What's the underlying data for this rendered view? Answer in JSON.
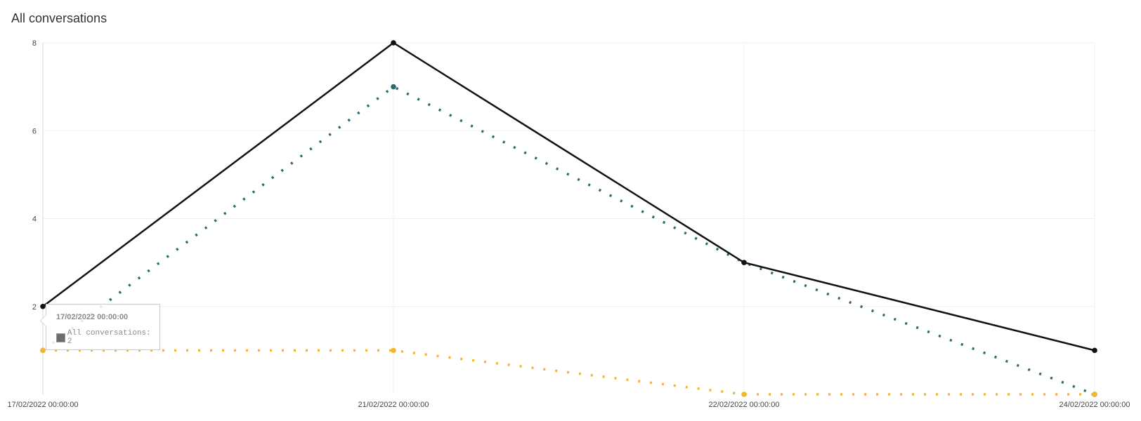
{
  "chart_data": {
    "type": "line",
    "title": "All conversations",
    "categories": [
      "17/02/2022 00:00:00",
      "21/02/2022 00:00:00",
      "22/02/2022 00:00:00",
      "24/02/2022 00:00:00"
    ],
    "yticks": [
      2,
      4,
      6,
      8
    ],
    "ylim": [
      0,
      8
    ],
    "grid": true,
    "series": [
      {
        "name": "All conversations",
        "values": [
          2,
          8,
          3,
          1
        ],
        "color": "#111111",
        "style": "solid"
      },
      {
        "values": [
          1,
          7,
          3,
          0
        ],
        "color": "#2a6b6b",
        "style": "dotted"
      },
      {
        "values": [
          1,
          1,
          0,
          0
        ],
        "color": "#f2b632",
        "style": "dotted"
      }
    ]
  },
  "tooltip": {
    "date": "17/02/2022 00:00:00",
    "text": "All conversations: 2"
  }
}
